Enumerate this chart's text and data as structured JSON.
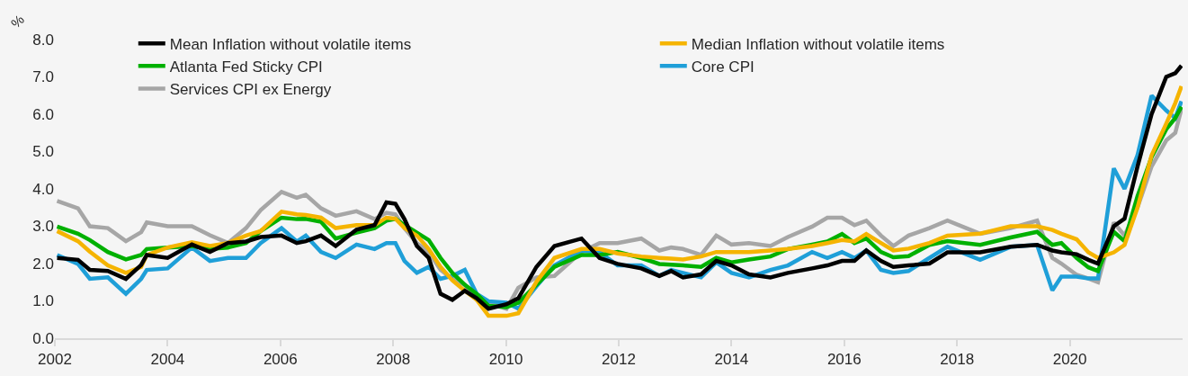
{
  "chart_data": {
    "type": "line",
    "ylabel": "%",
    "legend": "top",
    "grid": false,
    "x": [
      2002.04,
      2002.41,
      2002.62,
      2002.94,
      2003.26,
      2003.53,
      2003.63,
      2004.0,
      2004.43,
      2004.75,
      2005.07,
      2005.39,
      2005.65,
      2006.02,
      2006.29,
      2006.45,
      2006.72,
      2006.98,
      2007.35,
      2007.67,
      2007.88,
      2008.04,
      2008.2,
      2008.42,
      2008.63,
      2008.84,
      2009.05,
      2009.27,
      2009.48,
      2009.69,
      2010.01,
      2010.22,
      2010.54,
      2010.86,
      2011.34,
      2011.66,
      2011.98,
      2012.4,
      2012.72,
      2012.93,
      2013.14,
      2013.46,
      2013.73,
      2014.0,
      2014.31,
      2014.69,
      2015.0,
      2015.43,
      2015.7,
      2015.96,
      2016.18,
      2016.39,
      2016.65,
      2016.87,
      2017.14,
      2017.51,
      2017.83,
      2018.41,
      2018.95,
      2019.42,
      2019.69,
      2019.85,
      2020.12,
      2020.33,
      2020.5,
      2020.78,
      2020.97,
      2021.2,
      2021.45,
      2021.71,
      2021.87,
      2021.98
    ],
    "series": [
      {
        "name": "Mean Inflation without volatile items",
        "color": "#000000",
        "values": [
          2.15,
          2.1,
          1.83,
          1.8,
          1.59,
          1.96,
          2.23,
          2.15,
          2.51,
          2.31,
          2.55,
          2.59,
          2.71,
          2.75,
          2.55,
          2.6,
          2.75,
          2.47,
          2.91,
          3.03,
          3.64,
          3.6,
          3.19,
          2.47,
          2.15,
          1.19,
          1.03,
          1.27,
          1.07,
          0.79,
          0.91,
          1.07,
          1.91,
          2.47,
          2.67,
          2.15,
          1.99,
          1.87,
          1.67,
          1.8,
          1.63,
          1.71,
          2.07,
          1.95,
          1.71,
          1.63,
          1.75,
          1.87,
          1.95,
          2.07,
          2.07,
          2.35,
          2.07,
          1.91,
          1.95,
          2.0,
          2.3,
          2.3,
          2.45,
          2.5,
          2.35,
          2.3,
          2.25,
          2.1,
          2.0,
          3.0,
          3.2,
          4.6,
          6.0,
          7.0,
          7.1,
          7.3
        ]
      },
      {
        "name": "Median Inflation without volatile items",
        "color": "#f5b400",
        "values": [
          2.87,
          2.6,
          2.32,
          1.95,
          1.75,
          1.91,
          2.23,
          2.43,
          2.57,
          2.47,
          2.55,
          2.75,
          2.87,
          3.39,
          3.32,
          3.3,
          3.23,
          2.95,
          3.03,
          3.03,
          3.23,
          3.2,
          2.95,
          2.75,
          2.39,
          1.91,
          1.55,
          1.27,
          1.03,
          0.6,
          0.6,
          0.67,
          1.51,
          2.15,
          2.39,
          2.39,
          2.27,
          2.19,
          2.15,
          2.13,
          2.11,
          2.19,
          2.31,
          2.31,
          2.31,
          2.35,
          2.39,
          2.47,
          2.55,
          2.63,
          2.59,
          2.79,
          2.55,
          2.35,
          2.4,
          2.55,
          2.75,
          2.8,
          3.0,
          3.0,
          2.9,
          2.8,
          2.65,
          2.3,
          2.15,
          2.3,
          2.5,
          3.5,
          4.9,
          5.75,
          6.3,
          6.75
        ]
      },
      {
        "name": "Atlanta Fed Sticky CPI",
        "color": "#00b000",
        "values": [
          2.99,
          2.8,
          2.63,
          2.31,
          2.11,
          2.23,
          2.39,
          2.43,
          2.47,
          2.39,
          2.43,
          2.55,
          2.87,
          3.23,
          3.19,
          3.2,
          3.12,
          2.67,
          2.83,
          2.95,
          3.15,
          3.2,
          3.03,
          2.83,
          2.63,
          2.15,
          1.75,
          1.43,
          1.19,
          0.87,
          0.83,
          0.95,
          1.43,
          1.91,
          2.23,
          2.23,
          2.31,
          2.15,
          1.99,
          1.97,
          1.95,
          1.91,
          2.15,
          2.03,
          2.11,
          2.19,
          2.39,
          2.51,
          2.59,
          2.79,
          2.55,
          2.67,
          2.31,
          2.17,
          2.2,
          2.5,
          2.6,
          2.5,
          2.7,
          2.85,
          2.5,
          2.55,
          2.15,
          1.9,
          1.8,
          2.85,
          2.6,
          3.8,
          4.85,
          5.6,
          5.9,
          6.2
        ]
      },
      {
        "name": "Core CPI",
        "color": "#1f9fd8",
        "values": [
          2.23,
          1.99,
          1.59,
          1.63,
          1.19,
          1.59,
          1.83,
          1.87,
          2.43,
          2.07,
          2.15,
          2.15,
          2.55,
          2.95,
          2.59,
          2.75,
          2.31,
          2.15,
          2.51,
          2.39,
          2.55,
          2.55,
          2.07,
          1.75,
          1.91,
          1.59,
          1.67,
          1.83,
          1.19,
          0.99,
          0.95,
          0.79,
          1.39,
          1.95,
          2.35,
          2.31,
          1.95,
          1.95,
          1.67,
          1.83,
          1.75,
          1.63,
          2.03,
          1.75,
          1.63,
          1.83,
          1.95,
          2.31,
          2.15,
          2.31,
          2.15,
          2.35,
          1.83,
          1.75,
          1.8,
          2.15,
          2.45,
          2.1,
          2.45,
          2.5,
          1.28,
          1.65,
          1.65,
          1.6,
          1.6,
          4.55,
          4.0,
          4.9,
          6.5,
          6.1,
          5.9,
          6.35
        ]
      },
      {
        "name": "Services CPI ex Energy",
        "color": "#a6a6a6",
        "values": [
          3.68,
          3.48,
          3.0,
          2.95,
          2.6,
          2.84,
          3.1,
          3.0,
          3.0,
          2.76,
          2.55,
          2.95,
          3.43,
          3.92,
          3.76,
          3.84,
          3.48,
          3.28,
          3.4,
          3.19,
          3.36,
          3.32,
          2.95,
          2.55,
          2.31,
          1.83,
          1.59,
          1.43,
          1.03,
          0.95,
          0.79,
          1.35,
          1.63,
          1.67,
          2.31,
          2.55,
          2.55,
          2.67,
          2.35,
          2.43,
          2.39,
          2.23,
          2.75,
          2.51,
          2.55,
          2.47,
          2.71,
          2.99,
          3.23,
          3.23,
          3.03,
          3.15,
          2.75,
          2.47,
          2.75,
          2.95,
          3.15,
          2.8,
          2.95,
          3.15,
          2.15,
          2.0,
          1.7,
          1.6,
          1.5,
          3.1,
          2.75,
          3.5,
          4.6,
          5.3,
          5.5,
          6.15
        ]
      }
    ],
    "xlim": [
      2002,
      2022
    ],
    "xticks": [
      2002,
      2004,
      2006,
      2008,
      2010,
      2012,
      2014,
      2016,
      2018,
      2020
    ],
    "ylim": [
      0,
      8
    ],
    "yticks": [
      {
        "value": 0,
        "label": "0.0"
      },
      {
        "value": 1,
        "label": "1.0"
      },
      {
        "value": 2,
        "label": "2.0"
      },
      {
        "value": 3,
        "label": "3.0"
      },
      {
        "value": 4,
        "label": "4.0"
      },
      {
        "value": 5,
        "label": "5.0"
      },
      {
        "value": 6,
        "label": "6.0"
      },
      {
        "value": 7,
        "label": "7.0"
      },
      {
        "value": 8,
        "label": "8.0"
      }
    ]
  }
}
